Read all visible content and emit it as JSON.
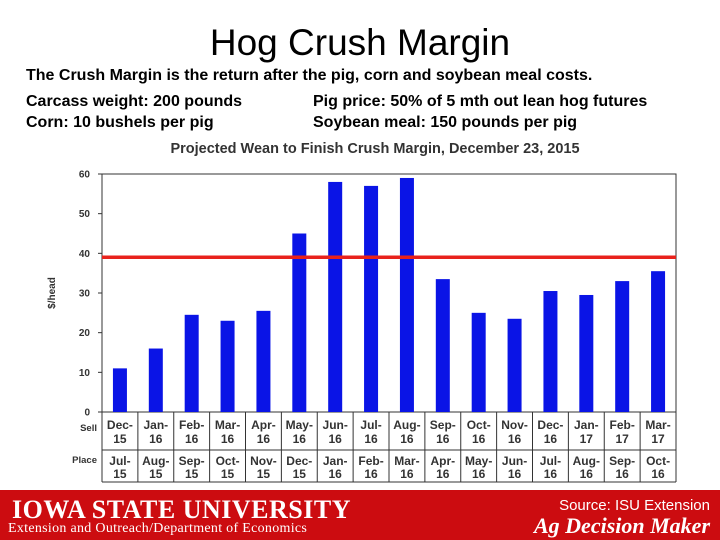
{
  "slide": {
    "title": "Hog Crush Margin",
    "line1": "The Crush Margin is the return after the pig, corn and soybean meal costs.",
    "line2_left": "Carcass weight:  200 pounds",
    "line2_right": "Pig price:  50% of 5 mth out lean hog futures",
    "line3_left": "Corn:  10 bushels per pig",
    "line3_right": "Soybean meal:  150 pounds per pig"
  },
  "chart_data": {
    "type": "bar",
    "title": "Projected Wean to Finish Crush Margin, December 23, 2015",
    "ylabel": "$/head",
    "ylim": [
      0,
      60
    ],
    "yticks": [
      0,
      10,
      20,
      30,
      40,
      50,
      60
    ],
    "row_labels": {
      "sell": "Sell",
      "place": "Place"
    },
    "categories_sell": [
      [
        "Dec-",
        "15"
      ],
      [
        "Jan-",
        "16"
      ],
      [
        "Feb-",
        "16"
      ],
      [
        "Mar-",
        "16"
      ],
      [
        "Apr-",
        "16"
      ],
      [
        "May-",
        "16"
      ],
      [
        "Jun-",
        "16"
      ],
      [
        "Jul-",
        "16"
      ],
      [
        "Aug-",
        "16"
      ],
      [
        "Sep-",
        "16"
      ],
      [
        "Oct-",
        "16"
      ],
      [
        "Nov-",
        "16"
      ],
      [
        "Dec-",
        "16"
      ],
      [
        "Jan-",
        "17"
      ],
      [
        "Feb-",
        "17"
      ],
      [
        "Mar-",
        "17"
      ]
    ],
    "categories_place": [
      [
        "Jul-",
        "15"
      ],
      [
        "Aug-",
        "15"
      ],
      [
        "Sep-",
        "15"
      ],
      [
        "Oct-",
        "15"
      ],
      [
        "Nov-",
        "15"
      ],
      [
        "Dec-",
        "15"
      ],
      [
        "Jan-",
        "16"
      ],
      [
        "Feb-",
        "16"
      ],
      [
        "Mar-",
        "16"
      ],
      [
        "Apr-",
        "16"
      ],
      [
        "May-",
        "16"
      ],
      [
        "Jun-",
        "16"
      ],
      [
        "Jul-",
        "16"
      ],
      [
        "Aug-",
        "16"
      ],
      [
        "Sep-",
        "16"
      ],
      [
        "Oct-",
        "16"
      ]
    ],
    "values": [
      11,
      16,
      24.5,
      23,
      25.5,
      45,
      58,
      57,
      59,
      33.5,
      25,
      23.5,
      30.5,
      29.5,
      33,
      35.5
    ],
    "reference_line": 39,
    "grid": false,
    "colors": {
      "bar": "#0a14e6",
      "reference": "#e8221c"
    }
  },
  "footer": {
    "university": "IOWA STATE UNIVERSITY",
    "department": "Extension and Outreach/Department of Economics",
    "source": "Source: ISU Extension",
    "brand": "Ag Decision Maker"
  }
}
